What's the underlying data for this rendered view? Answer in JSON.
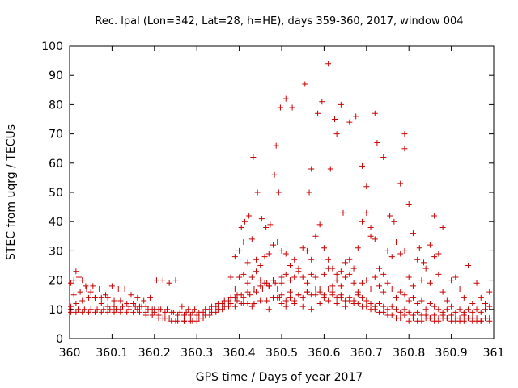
{
  "chart_data": {
    "type": "scatter",
    "title": "Rec. lpal (Lon=342, Lat=28, h=HE), days 359-360, 2017, window 004",
    "xlabel": "GPS time / Days of year 2017",
    "ylabel": "STEC from uqrg / TECUs",
    "xlim": [
      360,
      361
    ],
    "ylim": [
      0,
      100
    ],
    "x_ticks": [
      360,
      360.1,
      360.2,
      360.3,
      360.4,
      360.5,
      360.6,
      360.7,
      360.8,
      360.9,
      361
    ],
    "x_tick_labels": [
      "360",
      "360.1",
      "360.2",
      "360.3",
      "360.4",
      "360.5",
      "360.6",
      "360.7",
      "360.8",
      "360.9",
      "361"
    ],
    "y_ticks": [
      0,
      10,
      20,
      30,
      40,
      50,
      60,
      70,
      80,
      90,
      100
    ],
    "y_tick_labels": [
      "0",
      "10",
      "20",
      "30",
      "40",
      "50",
      "60",
      "70",
      "80",
      "90",
      "100"
    ],
    "grid": false,
    "legend": "none",
    "marker": "plus",
    "color": "#cc0000",
    "points": [
      [
        360.003,
        19
      ],
      [
        360.01,
        20
      ],
      [
        360.015,
        23
      ],
      [
        360.022,
        21
      ],
      [
        360.03,
        20
      ],
      [
        360.038,
        18
      ],
      [
        360.05,
        16
      ],
      [
        360.06,
        14
      ],
      [
        360.075,
        12
      ],
      [
        360.09,
        11
      ],
      [
        360.105,
        11
      ],
      [
        360.12,
        10
      ],
      [
        360.14,
        10
      ],
      [
        360.16,
        10
      ],
      [
        360.18,
        9
      ],
      [
        360.2,
        9
      ],
      [
        360.21,
        8
      ],
      [
        360.22,
        7
      ],
      [
        360.235,
        7
      ],
      [
        360.25,
        6
      ],
      [
        360.27,
        6
      ],
      [
        360.29,
        6
      ],
      [
        360.305,
        7
      ],
      [
        360.32,
        8
      ],
      [
        360.335,
        9
      ],
      [
        360.35,
        10
      ],
      [
        360.365,
        11
      ],
      [
        360.38,
        12
      ],
      [
        360.395,
        13
      ],
      [
        360.41,
        14
      ],
      [
        360.425,
        15
      ],
      [
        360.44,
        16
      ],
      [
        360.455,
        17
      ],
      [
        360.47,
        18
      ],
      [
        360.485,
        19
      ],
      [
        360.5,
        21
      ],
      [
        360.003,
        11
      ],
      [
        360.015,
        12
      ],
      [
        360.03,
        13
      ],
      [
        360.045,
        14
      ],
      [
        360.06,
        14
      ],
      [
        360.075,
        14
      ],
      [
        360.09,
        14
      ],
      [
        360.105,
        13
      ],
      [
        360.12,
        13
      ],
      [
        360.135,
        12
      ],
      [
        360.15,
        12
      ],
      [
        360.165,
        11
      ],
      [
        360.18,
        11
      ],
      [
        360.195,
        10
      ],
      [
        360.21,
        10
      ],
      [
        360.225,
        9
      ],
      [
        360.24,
        9
      ],
      [
        360.255,
        8
      ],
      [
        360.27,
        8
      ],
      [
        360.285,
        8
      ],
      [
        360.3,
        8
      ],
      [
        360.315,
        9
      ],
      [
        360.33,
        10
      ],
      [
        360.345,
        11
      ],
      [
        360.36,
        12
      ],
      [
        360.375,
        13
      ],
      [
        360.39,
        14
      ],
      [
        360.405,
        15
      ],
      [
        360.42,
        16
      ],
      [
        360.435,
        17
      ],
      [
        360.45,
        18
      ],
      [
        360.465,
        19
      ],
      [
        360.48,
        20
      ],
      [
        360.003,
        9
      ],
      [
        360.015,
        9
      ],
      [
        360.03,
        9
      ],
      [
        360.045,
        9
      ],
      [
        360.06,
        9
      ],
      [
        360.075,
        9
      ],
      [
        360.09,
        9
      ],
      [
        360.105,
        9
      ],
      [
        360.12,
        9
      ],
      [
        360.135,
        9
      ],
      [
        360.15,
        9
      ],
      [
        360.165,
        9
      ],
      [
        360.18,
        8
      ],
      [
        360.195,
        8
      ],
      [
        360.21,
        7
      ],
      [
        360.225,
        7
      ],
      [
        360.24,
        6
      ],
      [
        360.255,
        6
      ],
      [
        360.27,
        6
      ],
      [
        360.285,
        6
      ],
      [
        360.3,
        6
      ],
      [
        360.315,
        7
      ],
      [
        360.33,
        8
      ],
      [
        360.345,
        9
      ],
      [
        360.36,
        10
      ],
      [
        360.375,
        11
      ],
      [
        360.39,
        11
      ],
      [
        360.405,
        12
      ],
      [
        360.42,
        12
      ],
      [
        360.435,
        12
      ],
      [
        360.45,
        13
      ],
      [
        360.465,
        13
      ],
      [
        360.48,
        14
      ],
      [
        360.495,
        14
      ],
      [
        360.01,
        15
      ],
      [
        360.025,
        16
      ],
      [
        360.04,
        17
      ],
      [
        360.055,
        18
      ],
      [
        360.07,
        17
      ],
      [
        360.085,
        15
      ],
      [
        360.1,
        18
      ],
      [
        360.115,
        17
      ],
      [
        360.13,
        17
      ],
      [
        360.145,
        15
      ],
      [
        360.16,
        14
      ],
      [
        360.175,
        13
      ],
      [
        360.19,
        14
      ],
      [
        360.205,
        20
      ],
      [
        360.22,
        20
      ],
      [
        360.235,
        19
      ],
      [
        360.25,
        20
      ],
      [
        360.265,
        11
      ],
      [
        360.28,
        10
      ],
      [
        360.295,
        10
      ],
      [
        360.003,
        10
      ],
      [
        360.02,
        10
      ],
      [
        360.035,
        10
      ],
      [
        360.05,
        10
      ],
      [
        360.065,
        10
      ],
      [
        360.08,
        10
      ],
      [
        360.095,
        10
      ],
      [
        360.11,
        10
      ],
      [
        360.125,
        11
      ],
      [
        360.14,
        11
      ],
      [
        360.155,
        11
      ],
      [
        360.17,
        11
      ],
      [
        360.185,
        10
      ],
      [
        360.2,
        10
      ],
      [
        360.215,
        10
      ],
      [
        360.23,
        10
      ],
      [
        360.245,
        9
      ],
      [
        360.26,
        9
      ],
      [
        360.275,
        9
      ],
      [
        360.29,
        9
      ],
      [
        360.305,
        9
      ],
      [
        360.32,
        10
      ],
      [
        360.335,
        11
      ],
      [
        360.35,
        12
      ],
      [
        360.365,
        13
      ],
      [
        360.38,
        14
      ],
      [
        360.395,
        15
      ],
      [
        360.405,
        38
      ],
      [
        360.413,
        40
      ],
      [
        360.423,
        42
      ],
      [
        360.433,
        62
      ],
      [
        360.443,
        50
      ],
      [
        360.453,
        41
      ],
      [
        360.463,
        38
      ],
      [
        360.473,
        39
      ],
      [
        360.483,
        56
      ],
      [
        360.487,
        66
      ],
      [
        360.493,
        50
      ],
      [
        360.497,
        79
      ],
      [
        360.51,
        82
      ],
      [
        360.525,
        79
      ],
      [
        360.555,
        87
      ],
      [
        360.57,
        58
      ],
      [
        360.565,
        50
      ],
      [
        360.585,
        77
      ],
      [
        360.595,
        81
      ],
      [
        360.61,
        94
      ],
      [
        360.615,
        58
      ],
      [
        360.625,
        75
      ],
      [
        360.63,
        70
      ],
      [
        360.64,
        80
      ],
      [
        360.645,
        43
      ],
      [
        360.66,
        74
      ],
      [
        360.675,
        76
      ],
      [
        360.69,
        59
      ],
      [
        360.7,
        52
      ],
      [
        360.71,
        38
      ],
      [
        360.72,
        77
      ],
      [
        360.725,
        67
      ],
      [
        360.74,
        62
      ],
      [
        360.755,
        42
      ],
      [
        360.765,
        40
      ],
      [
        360.78,
        53
      ],
      [
        360.79,
        70
      ],
      [
        360.79,
        65
      ],
      [
        360.8,
        46
      ],
      [
        360.81,
        36
      ],
      [
        360.825,
        31
      ],
      [
        360.835,
        26
      ],
      [
        360.85,
        32
      ],
      [
        360.86,
        42
      ],
      [
        360.87,
        29
      ],
      [
        360.88,
        38
      ],
      [
        360.39,
        28
      ],
      [
        360.4,
        30
      ],
      [
        360.41,
        33
      ],
      [
        360.42,
        26
      ],
      [
        360.43,
        34
      ],
      [
        360.44,
        27
      ],
      [
        360.45,
        25
      ],
      [
        360.46,
        28
      ],
      [
        360.47,
        29
      ],
      [
        360.48,
        32
      ],
      [
        360.49,
        33
      ],
      [
        360.5,
        30
      ],
      [
        360.51,
        29
      ],
      [
        360.52,
        25
      ],
      [
        360.53,
        27
      ],
      [
        360.54,
        23
      ],
      [
        360.55,
        31
      ],
      [
        360.56,
        30
      ],
      [
        360.57,
        27
      ],
      [
        360.58,
        35
      ],
      [
        360.59,
        39
      ],
      [
        360.6,
        31
      ],
      [
        360.61,
        27
      ],
      [
        360.62,
        24
      ],
      [
        360.63,
        22
      ],
      [
        360.64,
        23
      ],
      [
        360.65,
        26
      ],
      [
        360.66,
        27
      ],
      [
        360.67,
        24
      ],
      [
        360.68,
        31
      ],
      [
        360.69,
        40
      ],
      [
        360.7,
        43
      ],
      [
        360.71,
        35
      ],
      [
        360.72,
        34
      ],
      [
        360.73,
        24
      ],
      [
        360.74,
        22
      ],
      [
        360.75,
        30
      ],
      [
        360.76,
        28
      ],
      [
        360.77,
        33
      ],
      [
        360.78,
        29
      ],
      [
        360.79,
        30
      ],
      [
        360.8,
        21
      ],
      [
        360.81,
        18
      ],
      [
        360.82,
        27
      ],
      [
        360.83,
        20
      ],
      [
        360.84,
        24
      ],
      [
        360.85,
        19
      ],
      [
        360.86,
        28
      ],
      [
        360.87,
        22
      ],
      [
        360.88,
        16
      ],
      [
        360.89,
        13
      ],
      [
        360.9,
        20
      ],
      [
        360.91,
        21
      ],
      [
        360.92,
        17
      ],
      [
        360.93,
        14
      ],
      [
        360.94,
        25
      ],
      [
        360.95,
        12
      ],
      [
        360.96,
        19
      ],
      [
        360.97,
        14
      ],
      [
        360.98,
        12
      ],
      [
        360.99,
        16
      ],
      [
        360.38,
        21
      ],
      [
        360.39,
        17
      ],
      [
        360.4,
        21
      ],
      [
        360.41,
        22
      ],
      [
        360.42,
        19
      ],
      [
        360.43,
        21
      ],
      [
        360.44,
        23
      ],
      [
        360.45,
        20
      ],
      [
        360.46,
        19
      ],
      [
        360.47,
        18
      ],
      [
        360.48,
        20
      ],
      [
        360.49,
        17
      ],
      [
        360.5,
        19
      ],
      [
        360.51,
        22
      ],
      [
        360.52,
        20
      ],
      [
        360.53,
        21
      ],
      [
        360.54,
        24
      ],
      [
        360.55,
        21
      ],
      [
        360.56,
        19
      ],
      [
        360.57,
        22
      ],
      [
        360.58,
        21
      ],
      [
        360.59,
        17
      ],
      [
        360.6,
        22
      ],
      [
        360.61,
        24
      ],
      [
        360.62,
        18
      ],
      [
        360.63,
        20
      ],
      [
        360.64,
        18
      ],
      [
        360.65,
        21
      ],
      [
        360.66,
        22
      ],
      [
        360.67,
        19
      ],
      [
        360.68,
        16
      ],
      [
        360.69,
        19
      ],
      [
        360.7,
        20
      ],
      [
        360.71,
        17
      ],
      [
        360.72,
        21
      ],
      [
        360.73,
        18
      ],
      [
        360.74,
        16
      ],
      [
        360.75,
        19
      ],
      [
        360.76,
        17
      ],
      [
        360.77,
        14
      ],
      [
        360.78,
        16
      ],
      [
        360.79,
        15
      ],
      [
        360.8,
        13
      ],
      [
        360.81,
        14
      ],
      [
        360.82,
        12
      ],
      [
        360.83,
        13
      ],
      [
        360.84,
        10
      ],
      [
        360.85,
        12
      ],
      [
        360.86,
        11
      ],
      [
        360.87,
        10
      ],
      [
        360.88,
        9
      ],
      [
        360.89,
        10
      ],
      [
        360.9,
        11
      ],
      [
        360.91,
        9
      ],
      [
        360.92,
        10
      ],
      [
        360.93,
        9
      ],
      [
        360.94,
        10
      ],
      [
        360.95,
        9
      ],
      [
        360.96,
        10
      ],
      [
        360.97,
        9
      ],
      [
        360.98,
        10
      ],
      [
        360.99,
        11
      ],
      [
        360.5,
        12
      ],
      [
        360.51,
        13
      ],
      [
        360.52,
        14
      ],
      [
        360.53,
        13
      ],
      [
        360.54,
        15
      ],
      [
        360.55,
        14
      ],
      [
        360.56,
        16
      ],
      [
        360.57,
        15
      ],
      [
        360.58,
        17
      ],
      [
        360.59,
        16
      ],
      [
        360.6,
        15
      ],
      [
        360.61,
        17
      ],
      [
        360.62,
        16
      ],
      [
        360.63,
        14
      ],
      [
        360.64,
        15
      ],
      [
        360.65,
        13
      ],
      [
        360.66,
        14
      ],
      [
        360.67,
        13
      ],
      [
        360.68,
        15
      ],
      [
        360.69,
        14
      ],
      [
        360.7,
        13
      ],
      [
        360.71,
        12
      ],
      [
        360.72,
        11
      ],
      [
        360.73,
        12
      ],
      [
        360.74,
        11
      ],
      [
        360.75,
        10
      ],
      [
        360.76,
        11
      ],
      [
        360.77,
        10
      ],
      [
        360.78,
        9
      ],
      [
        360.79,
        10
      ],
      [
        360.8,
        9
      ],
      [
        360.81,
        8
      ],
      [
        360.82,
        9
      ],
      [
        360.83,
        8
      ],
      [
        360.84,
        8
      ],
      [
        360.85,
        7
      ],
      [
        360.86,
        8
      ],
      [
        360.87,
        7
      ],
      [
        360.88,
        8
      ],
      [
        360.89,
        7
      ],
      [
        360.9,
        8
      ],
      [
        360.91,
        7
      ],
      [
        360.92,
        7
      ],
      [
        360.93,
        8
      ],
      [
        360.94,
        7
      ],
      [
        360.95,
        6
      ],
      [
        360.96,
        7
      ],
      [
        360.97,
        6
      ],
      [
        360.98,
        7
      ],
      [
        360.99,
        6
      ],
      [
        360.5,
        15
      ],
      [
        360.52,
        16
      ],
      [
        360.54,
        15
      ],
      [
        360.56,
        16
      ],
      [
        360.58,
        15
      ],
      [
        360.6,
        14
      ],
      [
        360.62,
        15
      ],
      [
        360.64,
        14
      ],
      [
        360.66,
        13
      ],
      [
        360.68,
        12
      ],
      [
        360.7,
        11
      ],
      [
        360.72,
        10
      ],
      [
        360.74,
        9
      ],
      [
        360.76,
        8
      ],
      [
        360.78,
        7
      ],
      [
        360.8,
        6
      ],
      [
        360.82,
        6
      ],
      [
        360.84,
        7
      ],
      [
        360.86,
        6
      ],
      [
        360.88,
        7
      ],
      [
        360.9,
        6
      ],
      [
        360.92,
        6
      ],
      [
        360.94,
        7
      ],
      [
        360.96,
        6
      ],
      [
        360.98,
        7
      ],
      [
        360.41,
        12
      ],
      [
        360.43,
        11
      ],
      [
        360.45,
        13
      ],
      [
        360.47,
        10
      ],
      [
        360.49,
        14
      ],
      [
        360.51,
        11
      ],
      [
        360.53,
        12
      ],
      [
        360.55,
        11
      ],
      [
        360.57,
        10
      ],
      [
        360.59,
        12
      ],
      [
        360.61,
        13
      ],
      [
        360.63,
        12
      ],
      [
        360.65,
        11
      ],
      [
        360.67,
        12
      ],
      [
        360.69,
        11
      ],
      [
        360.71,
        10
      ],
      [
        360.73,
        9
      ],
      [
        360.75,
        8
      ],
      [
        360.77,
        7
      ],
      [
        360.79,
        8
      ],
      [
        360.81,
        7
      ],
      [
        360.83,
        6
      ],
      [
        360.85,
        7
      ],
      [
        360.87,
        6
      ],
      [
        360.89,
        7
      ],
      [
        360.91,
        6
      ],
      [
        360.93,
        6
      ],
      [
        360.95,
        7
      ],
      [
        360.97,
        6
      ],
      [
        360.99,
        7
      ]
    ]
  }
}
